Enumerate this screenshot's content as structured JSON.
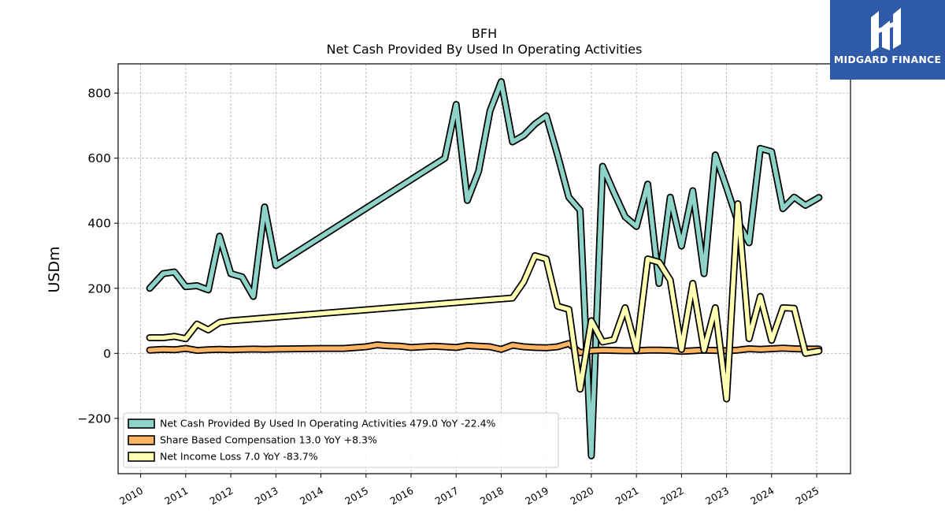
{
  "chart_data": {
    "type": "line",
    "title": "BFH",
    "subtitle": "Net Cash Provided By Used In Operating Activities",
    "ylabel": "USDm",
    "xlabel": "",
    "ylim": [
      -370,
      890
    ],
    "xlim": [
      2009.5,
      2025.75
    ],
    "grid": true,
    "legend_position": "lower-left",
    "x_ticks": [
      "2010",
      "2011",
      "2012",
      "2013",
      "2014",
      "2015",
      "2016",
      "2017",
      "2018",
      "2019",
      "2020",
      "2021",
      "2022",
      "2023",
      "2024",
      "2025"
    ],
    "y_ticks": [
      -200,
      0,
      200,
      400,
      600,
      800
    ],
    "y_tick_labels": [
      "−200",
      "0",
      "200",
      "400",
      "600",
      "800"
    ],
    "series": [
      {
        "name": "Net Cash Provided By Used In Operating Activities",
        "legend": "Net Cash Provided By Used In Operating Activities  479.0 YoY -22.4%",
        "color": "#8dd3c7",
        "x": [
          2010.2,
          2010.5,
          2010.75,
          2011.0,
          2011.25,
          2011.5,
          2011.75,
          2012.0,
          2012.25,
          2012.5,
          2012.75,
          2013.0,
          2016.75,
          2017.0,
          2017.25,
          2017.5,
          2017.75,
          2018.0,
          2018.25,
          2018.5,
          2018.75,
          2019.0,
          2019.25,
          2019.5,
          2019.75,
          2020.0,
          2020.25,
          2020.5,
          2020.75,
          2021.0,
          2021.25,
          2021.5,
          2021.75,
          2022.0,
          2022.25,
          2022.5,
          2022.75,
          2023.0,
          2023.25,
          2023.5,
          2023.75,
          2024.0,
          2024.25,
          2024.5,
          2024.75,
          2025.05
        ],
        "y": [
          200,
          245,
          250,
          205,
          208,
          195,
          360,
          245,
          235,
          175,
          450,
          270,
          600,
          765,
          470,
          560,
          745,
          835,
          650,
          670,
          705,
          730,
          610,
          480,
          440,
          -315,
          575,
          495,
          420,
          390,
          520,
          215,
          480,
          330,
          500,
          245,
          610,
          510,
          405,
          340,
          630,
          620,
          445,
          480,
          455,
          479
        ]
      },
      {
        "name": "Share Based Compensation",
        "legend": "Share Based Compensation  13.0 YoY +8.3%",
        "color": "#fdb462",
        "x": [
          2010.2,
          2010.5,
          2010.75,
          2011.0,
          2011.25,
          2011.5,
          2011.75,
          2012.0,
          2012.25,
          2012.5,
          2012.75,
          2013.0,
          2013.5,
          2014.0,
          2014.5,
          2015.0,
          2015.25,
          2015.5,
          2015.75,
          2016.0,
          2016.5,
          2016.75,
          2017.0,
          2017.25,
          2017.5,
          2017.75,
          2018.0,
          2018.25,
          2018.5,
          2018.75,
          2019.0,
          2019.25,
          2019.5,
          2019.75,
          2020.0,
          2020.25,
          2020.5,
          2020.75,
          2021.0,
          2021.25,
          2021.5,
          2021.75,
          2022.0,
          2022.25,
          2022.5,
          2022.75,
          2023.0,
          2023.25,
          2023.5,
          2023.75,
          2024.0,
          2024.25,
          2024.5,
          2024.75,
          2025.05
        ],
        "y": [
          10,
          12,
          11,
          15,
          9,
          11,
          12,
          11,
          12,
          13,
          12,
          13,
          14,
          15,
          15,
          20,
          26,
          23,
          22,
          18,
          22,
          20,
          18,
          24,
          22,
          20,
          12,
          25,
          20,
          18,
          17,
          20,
          30,
          2,
          8,
          10,
          9,
          8,
          8,
          10,
          10,
          9,
          6,
          8,
          10,
          9,
          8,
          10,
          14,
          12,
          14,
          16,
          14,
          13,
          13
        ]
      },
      {
        "name": "Net Income Loss",
        "legend": "Net Income Loss  7.0 YoY -83.7%",
        "color": "#ffffb3",
        "x": [
          2010.2,
          2010.5,
          2010.75,
          2011.0,
          2011.25,
          2011.5,
          2011.75,
          2012.0,
          2018.25,
          2018.5,
          2018.75,
          2019.0,
          2019.25,
          2019.5,
          2019.75,
          2020.0,
          2020.25,
          2020.5,
          2020.75,
          2021.0,
          2021.25,
          2021.5,
          2021.75,
          2022.0,
          2022.25,
          2022.5,
          2022.75,
          2023.0,
          2023.25,
          2023.5,
          2023.75,
          2024.0,
          2024.25,
          2024.5,
          2024.75,
          2025.05
        ],
        "y": [
          48,
          48,
          52,
          45,
          90,
          72,
          95,
          100,
          170,
          220,
          300,
          290,
          145,
          135,
          -110,
          100,
          35,
          42,
          140,
          10,
          290,
          280,
          225,
          12,
          215,
          10,
          140,
          -140,
          460,
          45,
          175,
          40,
          140,
          138,
          0,
          7
        ]
      }
    ]
  },
  "logo": {
    "text": "MIDGARD FINANCE"
  }
}
